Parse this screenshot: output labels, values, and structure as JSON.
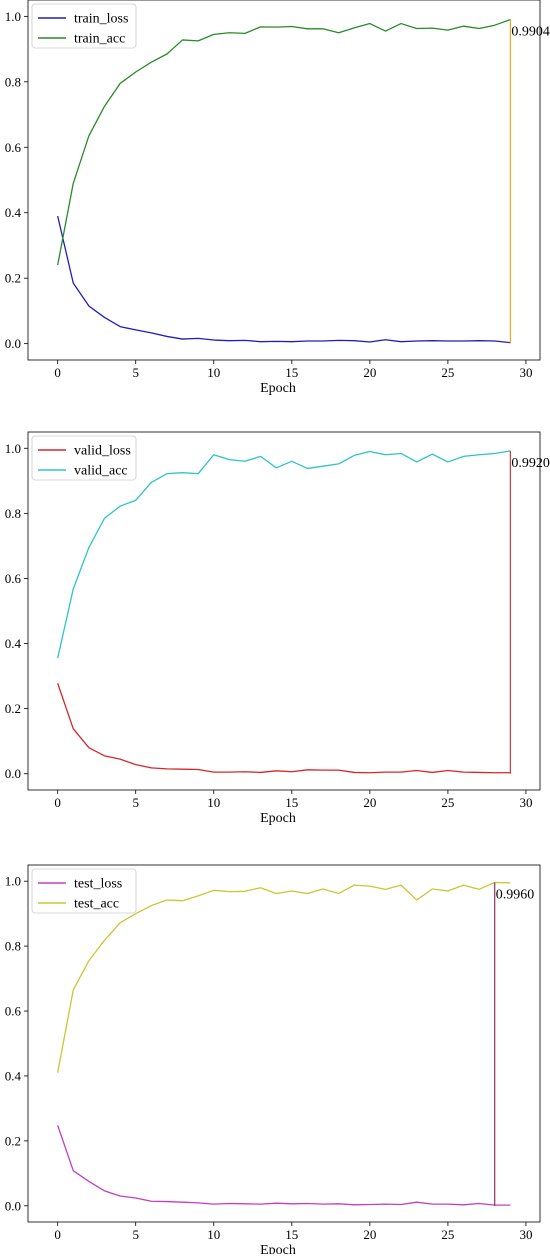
{
  "chart_data": [
    {
      "type": "line",
      "xlabel": "Epoch",
      "ylabel": "",
      "xlim": [
        -1.9,
        30.9
      ],
      "ylim": [
        -0.05,
        1.05
      ],
      "xticks": [
        0,
        5,
        10,
        15,
        20,
        25,
        30
      ],
      "yticks": [
        0.0,
        0.2,
        0.4,
        0.6,
        0.8,
        1.0
      ],
      "grid": false,
      "legend_position": "top-left",
      "series": [
        {
          "name": "train_loss",
          "color": "#1f1fbf",
          "x": [
            0,
            1,
            2,
            3,
            4,
            5,
            6,
            7,
            8,
            9,
            10,
            11,
            12,
            13,
            14,
            15,
            16,
            17,
            18,
            19,
            20,
            21,
            22,
            23,
            24,
            25,
            26,
            27,
            28,
            29
          ],
          "values": [
            0.39,
            0.185,
            0.115,
            0.08,
            0.052,
            0.042,
            0.033,
            0.022,
            0.014,
            0.016,
            0.011,
            0.009,
            0.01,
            0.006,
            0.007,
            0.006,
            0.008,
            0.008,
            0.01,
            0.009,
            0.005,
            0.012,
            0.006,
            0.008,
            0.009,
            0.008,
            0.008,
            0.009,
            0.008,
            0.003
          ]
        },
        {
          "name": "train_acc",
          "color": "#2a8a2a",
          "x": [
            0,
            1,
            2,
            3,
            4,
            5,
            6,
            7,
            8,
            9,
            10,
            11,
            12,
            13,
            14,
            15,
            16,
            17,
            18,
            19,
            20,
            21,
            22,
            23,
            24,
            25,
            26,
            27,
            28,
            29
          ],
          "values": [
            0.24,
            0.49,
            0.635,
            0.725,
            0.795,
            0.83,
            0.86,
            0.885,
            0.928,
            0.925,
            0.945,
            0.95,
            0.948,
            0.968,
            0.967,
            0.969,
            0.962,
            0.962,
            0.95,
            0.965,
            0.978,
            0.955,
            0.978,
            0.963,
            0.964,
            0.958,
            0.97,
            0.963,
            0.973,
            0.99
          ]
        }
      ],
      "max_marker": {
        "x": 29,
        "y": 0.9904,
        "color": "#f0a000",
        "label": "0.9904"
      }
    },
    {
      "type": "line",
      "xlabel": "Epoch",
      "ylabel": "",
      "xlim": [
        -1.9,
        30.9
      ],
      "ylim": [
        -0.05,
        1.05
      ],
      "xticks": [
        0,
        5,
        10,
        15,
        20,
        25,
        30
      ],
      "yticks": [
        0.0,
        0.2,
        0.4,
        0.6,
        0.8,
        1.0
      ],
      "grid": false,
      "legend_position": "top-left",
      "series": [
        {
          "name": "valid_loss",
          "color": "#d62728",
          "x": [
            0,
            1,
            2,
            3,
            4,
            5,
            6,
            7,
            8,
            9,
            10,
            11,
            12,
            13,
            14,
            15,
            16,
            17,
            18,
            19,
            20,
            21,
            22,
            23,
            24,
            25,
            26,
            27,
            28,
            29
          ],
          "values": [
            0.278,
            0.138,
            0.08,
            0.055,
            0.045,
            0.028,
            0.018,
            0.015,
            0.014,
            0.013,
            0.005,
            0.005,
            0.006,
            0.004,
            0.009,
            0.006,
            0.012,
            0.011,
            0.011,
            0.004,
            0.003,
            0.005,
            0.005,
            0.01,
            0.004,
            0.01,
            0.005,
            0.004,
            0.003,
            0.003
          ]
        },
        {
          "name": "valid_acc",
          "color": "#2ec4c4",
          "x": [
            0,
            1,
            2,
            3,
            4,
            5,
            6,
            7,
            8,
            9,
            10,
            11,
            12,
            13,
            14,
            15,
            16,
            17,
            18,
            19,
            20,
            21,
            22,
            23,
            24,
            25,
            26,
            27,
            28,
            29
          ],
          "values": [
            0.355,
            0.568,
            0.695,
            0.785,
            0.822,
            0.84,
            0.895,
            0.922,
            0.925,
            0.922,
            0.98,
            0.965,
            0.96,
            0.975,
            0.94,
            0.96,
            0.938,
            0.945,
            0.952,
            0.978,
            0.99,
            0.98,
            0.984,
            0.958,
            0.982,
            0.958,
            0.975,
            0.98,
            0.984,
            0.992
          ]
        }
      ],
      "max_marker": {
        "x": 29,
        "y": 0.992,
        "color": "#d62728",
        "label": "0.9920"
      }
    },
    {
      "type": "line",
      "xlabel": "Epoch",
      "ylabel": "",
      "xlim": [
        -1.9,
        30.9
      ],
      "ylim": [
        -0.05,
        1.05
      ],
      "xticks": [
        0,
        5,
        10,
        15,
        20,
        25,
        30
      ],
      "yticks": [
        0.0,
        0.2,
        0.4,
        0.6,
        0.8,
        1.0
      ],
      "grid": false,
      "legend_position": "top-left",
      "series": [
        {
          "name": "test_loss",
          "color": "#c040c0",
          "x": [
            0,
            1,
            2,
            3,
            4,
            5,
            6,
            7,
            8,
            9,
            10,
            11,
            12,
            13,
            14,
            15,
            16,
            17,
            18,
            19,
            20,
            21,
            22,
            23,
            24,
            25,
            26,
            27,
            28,
            29
          ],
          "values": [
            0.248,
            0.108,
            0.075,
            0.046,
            0.03,
            0.024,
            0.014,
            0.013,
            0.011,
            0.009,
            0.005,
            0.007,
            0.006,
            0.005,
            0.008,
            0.006,
            0.007,
            0.005,
            0.006,
            0.003,
            0.004,
            0.005,
            0.004,
            0.011,
            0.005,
            0.005,
            0.003,
            0.007,
            0.002,
            0.002
          ]
        },
        {
          "name": "test_acc",
          "color": "#c8c832",
          "x": [
            0,
            1,
            2,
            3,
            4,
            5,
            6,
            7,
            8,
            9,
            10,
            11,
            12,
            13,
            14,
            15,
            16,
            17,
            18,
            19,
            20,
            21,
            22,
            23,
            24,
            25,
            26,
            27,
            28,
            29
          ],
          "values": [
            0.41,
            0.665,
            0.755,
            0.818,
            0.872,
            0.9,
            0.925,
            0.942,
            0.94,
            0.955,
            0.972,
            0.968,
            0.969,
            0.98,
            0.962,
            0.97,
            0.962,
            0.976,
            0.962,
            0.988,
            0.985,
            0.975,
            0.988,
            0.942,
            0.976,
            0.97,
            0.988,
            0.975,
            0.996,
            0.995
          ]
        }
      ],
      "max_marker": {
        "x": 28,
        "y": 0.996,
        "color": "#8b1c4a",
        "label": "0.9960"
      }
    }
  ]
}
